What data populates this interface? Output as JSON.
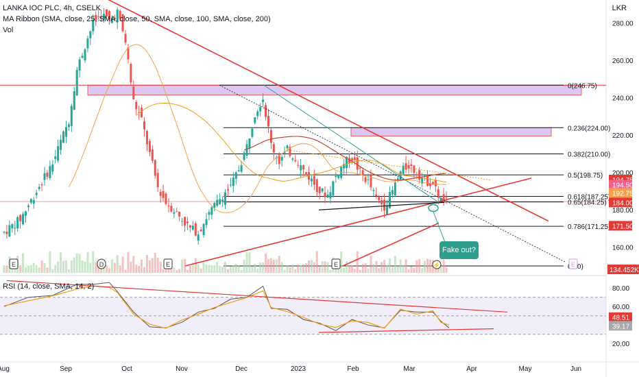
{
  "chart_data": [
    {
      "type": "candlestick",
      "title": "LANKA IOC PLC, 4h, CSELK",
      "indicators": [
        "MA Ribbon (SMA, close, 25, SMA, close, 50, SMA, close, 100, SMA, close, 200)",
        "Vol"
      ],
      "currency": "LKR",
      "ylim": [
        150,
        296
      ],
      "y_ticks": [
        "280.00",
        "260.00",
        "240.00",
        "220.00",
        "200.00",
        "180.00",
        "160.00"
      ],
      "x_labels": [
        "Aug",
        "Sep",
        "Oct",
        "Nov",
        "Dec",
        "2023",
        "Feb",
        "Mar",
        "Apr",
        "May",
        "Jun"
      ],
      "close_path": [
        [
          0,
          168
        ],
        [
          2,
          175
        ],
        [
          4,
          190
        ],
        [
          6,
          205
        ],
        [
          8,
          228
        ],
        [
          9,
          255
        ],
        [
          10,
          268
        ],
        [
          11,
          280
        ],
        [
          12,
          285
        ],
        [
          13,
          281
        ],
        [
          14,
          286
        ],
        [
          15,
          270
        ],
        [
          16,
          238
        ],
        [
          17,
          228
        ],
        [
          18,
          210
        ],
        [
          19,
          192
        ],
        [
          20,
          184
        ],
        [
          21,
          180
        ],
        [
          22,
          175
        ],
        [
          23,
          170
        ],
        [
          24,
          168
        ],
        [
          25,
          176
        ],
        [
          26,
          182
        ],
        [
          27,
          188
        ],
        [
          28,
          192
        ],
        [
          29,
          202
        ],
        [
          30,
          214
        ],
        [
          31,
          232
        ],
        [
          32,
          240
        ],
        [
          33,
          215
        ],
        [
          34,
          206
        ],
        [
          35,
          212
        ],
        [
          36,
          208
        ],
        [
          37,
          201
        ],
        [
          38,
          196
        ],
        [
          39,
          190
        ],
        [
          40,
          188
        ],
        [
          41,
          198
        ],
        [
          42,
          205
        ],
        [
          43,
          208
        ],
        [
          44,
          200
        ],
        [
          45,
          195
        ],
        [
          46,
          186
        ],
        [
          47,
          182
        ],
        [
          48,
          190
        ],
        [
          49,
          200
        ],
        [
          50,
          204
        ],
        [
          51,
          200
        ],
        [
          52,
          196
        ],
        [
          53,
          194
        ],
        [
          54,
          185
        ],
        [
          55,
          184
        ]
      ],
      "price_labels": [
        {
          "value": 194.75,
          "text": "194.75",
          "color": "#e53935"
        },
        {
          "value": 194.5,
          "text": "194.50",
          "color": "#f06292"
        },
        {
          "value": 192.75,
          "text": "192.75",
          "color": "#f6a04d"
        },
        {
          "value": 184.0,
          "text": "184.00",
          "color": "#e53935"
        },
        {
          "value": 171.5,
          "text": "171.50",
          "color": "#e53935"
        }
      ],
      "volume_label": "134.452K",
      "fib_levels": [
        {
          "value": 246.75,
          "label": "0(246.75)"
        },
        {
          "value": 224.0,
          "label": "0.236(224.00)"
        },
        {
          "value": 210.0,
          "label": "0.382(210.00)"
        },
        {
          "value": 198.75,
          "label": "0.5(198.75)"
        },
        {
          "value": 187.25,
          "label": "0.618(187.25)"
        },
        {
          "value": 184.25,
          "label": "0.65(184.25)"
        },
        {
          "value": 171.25,
          "label": "0.786(171.25)"
        },
        {
          "value": 150.0,
          "label": "0.50)"
        }
      ],
      "zones": [
        {
          "from": 241.5,
          "to": 246.75,
          "color": "#d7b8ef"
        },
        {
          "from": 219.5,
          "to": 224.0,
          "color": "#d7b8ef"
        }
      ],
      "annotation": "Fake out?",
      "event_markers": [
        "E",
        "D",
        "E",
        "E",
        "E"
      ]
    },
    {
      "type": "line",
      "title": "RSI (14, close, SMA, 14, 2)",
      "ylim": [
        12,
        92
      ],
      "y_ticks": [
        "80.00",
        "60.00",
        "40.00",
        "20.00"
      ],
      "band": [
        30,
        70
      ],
      "last_values": [
        {
          "value": 48.51,
          "text": "48.51",
          "color": "#e53935"
        },
        {
          "value": 39.17,
          "text": "39.17",
          "color": "#a8a8a8"
        }
      ],
      "rsi_path": [
        [
          0,
          62
        ],
        [
          3,
          68
        ],
        [
          6,
          74
        ],
        [
          9,
          82
        ],
        [
          11,
          86
        ],
        [
          13,
          84
        ],
        [
          14,
          78
        ],
        [
          16,
          52
        ],
        [
          18,
          40
        ],
        [
          20,
          35
        ],
        [
          22,
          45
        ],
        [
          24,
          52
        ],
        [
          26,
          60
        ],
        [
          28,
          66
        ],
        [
          30,
          72
        ],
        [
          32,
          80
        ],
        [
          33,
          60
        ],
        [
          35,
          55
        ],
        [
          37,
          48
        ],
        [
          39,
          40
        ],
        [
          41,
          36
        ],
        [
          43,
          44
        ],
        [
          45,
          42
        ],
        [
          47,
          35
        ],
        [
          49,
          58
        ],
        [
          51,
          52
        ],
        [
          53,
          56
        ],
        [
          54,
          42
        ],
        [
          55,
          39
        ]
      ]
    }
  ]
}
